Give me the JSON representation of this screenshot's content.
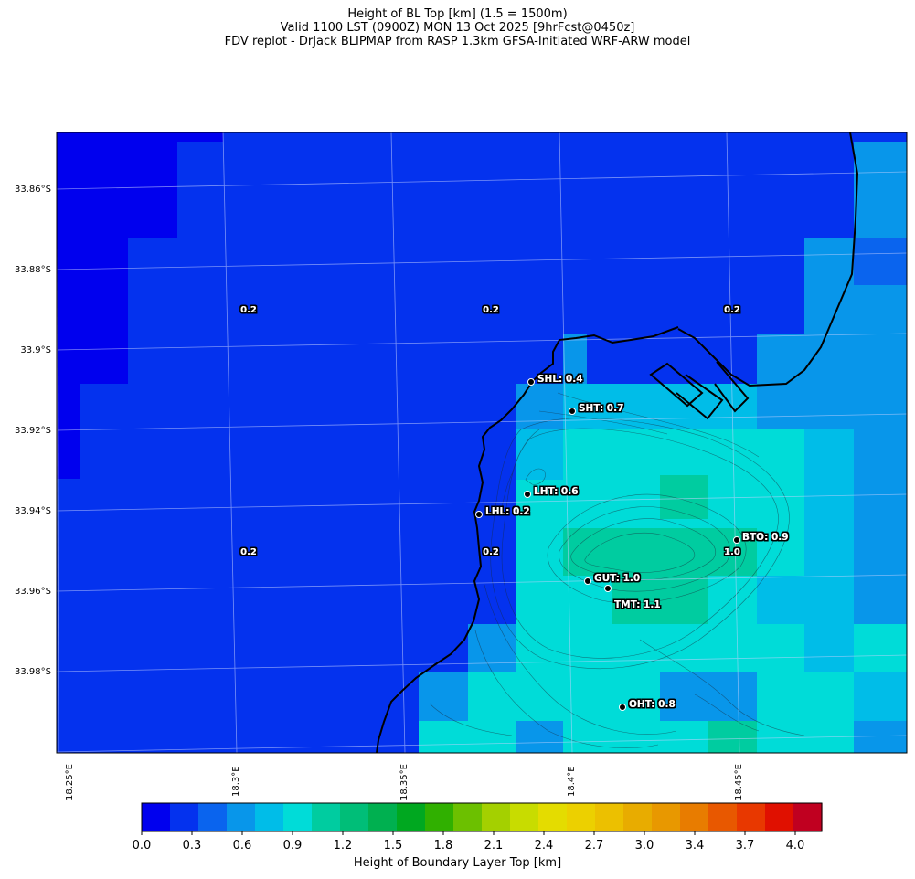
{
  "title": {
    "line1": "Height of BL Top [km] (1.5 = 1500m)",
    "line2": "Valid 1100 LST (0900Z) MON 13 Oct 2025 [9hrFcst@0450z]",
    "line3": "FDV replot - DrJack BLIPMAP from RASP 1.3km GFSA-Initiated WRF-ARW model"
  },
  "latitude_labels": [
    "33.86°S",
    "33.88°S",
    "33.9°S",
    "33.92°S",
    "33.94°S",
    "33.96°S",
    "33.98°S"
  ],
  "longitude_labels": [
    "18.25°E",
    "18.3°E",
    "18.35°E",
    "18.4°E",
    "18.45°E"
  ],
  "grid_values": [
    "0.2",
    "0.2",
    "0.2",
    "0.2",
    "0.2",
    "1.0"
  ],
  "stations": [
    {
      "label": "SHL: 0.4"
    },
    {
      "label": "SHT: 0.7"
    },
    {
      "label": "LHT: 0.6"
    },
    {
      "label": "LHL: 0.2"
    },
    {
      "label": "BTO: 0.9"
    },
    {
      "label": "GUT: 1.0"
    },
    {
      "label": "TMT: 1.1"
    },
    {
      "label": "OHT: 0.8"
    }
  ],
  "colorbar": {
    "label": "Height of Boundary Layer Top [km]",
    "ticks": [
      "0.0",
      "0.3",
      "0.6",
      "0.9",
      "1.2",
      "1.5",
      "1.8",
      "2.1",
      "2.4",
      "2.7",
      "3.0",
      "3.4",
      "3.7",
      "4.0"
    ],
    "colors": [
      "#0000ee",
      "#0432ee",
      "#0a64ee",
      "#0896ea",
      "#00bde8",
      "#00dcd8",
      "#00cca0",
      "#00be78",
      "#00b050",
      "#00a820",
      "#30b000",
      "#6cc000",
      "#a4d000",
      "#c8dc00",
      "#e4dc00",
      "#ecd000",
      "#ecc000",
      "#e8ac00",
      "#e89800",
      "#e87c00",
      "#e85800",
      "#e83800",
      "#e01000",
      "#c00020"
    ]
  },
  "chart_data": {
    "type": "heatmap",
    "title": "Height of BL Top [km] (1.5 = 1500m)",
    "colorbar_label": "Height of Boundary Layer Top [km]",
    "value_range": [
      0.0,
      4.1
    ],
    "stations": [
      {
        "code": "SHL",
        "value": 0.4
      },
      {
        "code": "SHT",
        "value": 0.7
      },
      {
        "code": "LHT",
        "value": 0.6
      },
      {
        "code": "LHL",
        "value": 0.2
      },
      {
        "code": "BTO",
        "value": 0.9
      },
      {
        "code": "GUT",
        "value": 1.0
      },
      {
        "code": "TMT",
        "value": 1.1
      },
      {
        "code": "OHT",
        "value": 0.8
      }
    ]
  }
}
